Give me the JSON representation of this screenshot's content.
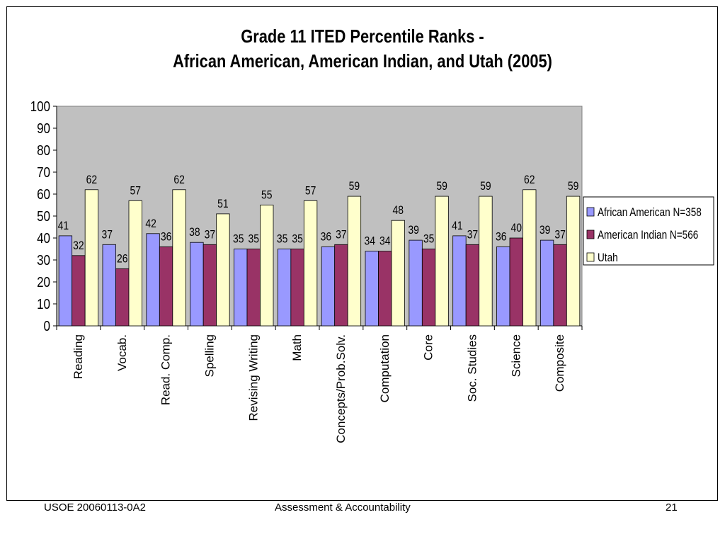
{
  "chart_data": {
    "type": "bar",
    "title_lines": [
      "Grade 11 ITED Percentile Ranks -",
      "African American, American Indian, and Utah (2005)"
    ],
    "categories": [
      "Reading",
      "Vocab.",
      "Read. Comp.",
      "Spelling",
      "Revising Writing",
      "Math",
      "Concepts/Prob.Solv.",
      "Computation",
      "Core",
      "Soc. Studies",
      "Science",
      "Composite"
    ],
    "series": [
      {
        "name": "African American N=358",
        "color": "#9999ff",
        "values": [
          41,
          37,
          42,
          38,
          35,
          35,
          36,
          34,
          39,
          41,
          36,
          39
        ]
      },
      {
        "name": "American Indian N=566",
        "color": "#993366",
        "values": [
          32,
          26,
          36,
          37,
          35,
          35,
          37,
          34,
          35,
          37,
          40,
          37
        ]
      },
      {
        "name": "Utah",
        "color": "#ffffcc",
        "values": [
          62,
          57,
          62,
          51,
          55,
          57,
          59,
          48,
          59,
          59,
          62,
          59
        ]
      }
    ],
    "ylim": [
      0,
      100
    ],
    "yticks": [
      0,
      10,
      20,
      30,
      40,
      50,
      60,
      70,
      80,
      90,
      100
    ],
    "grid": false,
    "plot_background": "#c0c0c0",
    "legend_position": "right"
  },
  "footer": {
    "left": "USOE 20060113-0A2",
    "center": "Assessment & Accountability",
    "right": "21"
  }
}
